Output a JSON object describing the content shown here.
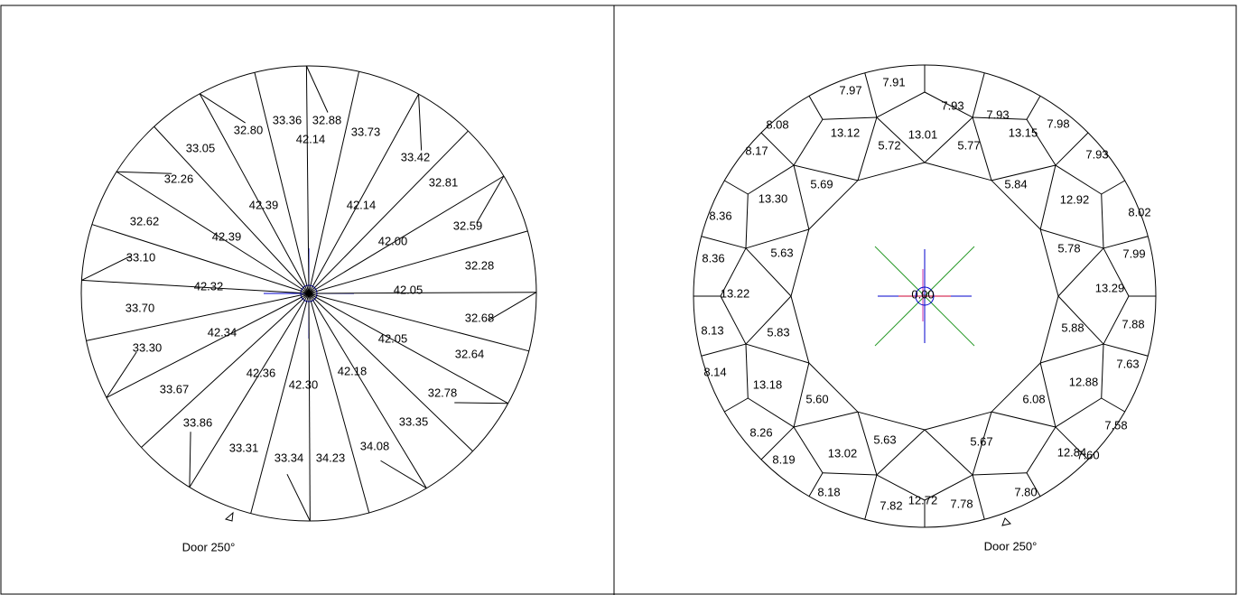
{
  "left": {
    "outer_labels": [
      "33.36",
      "32.88",
      "33.73",
      "33.42",
      "32.81",
      "32.59",
      "32.28",
      "32.68",
      "32.64",
      "32.78",
      "33.35",
      "34.08",
      "34.23",
      "33.34",
      "33.31",
      "33.86",
      "33.67",
      "33.30",
      "33.70",
      "33.10",
      "32.62",
      "32.26",
      "33.05",
      "32.80"
    ],
    "main_labels": [
      "42.14",
      "42.14",
      "42.00",
      "42.05",
      "42.05",
      "42.18",
      "42.30",
      "42.36",
      "42.34",
      "42.32",
      "42.39",
      "42.39"
    ],
    "door": "Door 250°"
  },
  "right": {
    "bezel_labels": [
      "13.01",
      "13.15",
      "12.92",
      "13.29",
      "12.88",
      "12.84",
      "12.72",
      "13.02",
      "13.18",
      "13.22",
      "13.30",
      "13.12"
    ],
    "star_labels": [
      "5.77",
      "5.84",
      "5.78",
      "5.88",
      "6.08",
      "5.67",
      "5.63",
      "5.60",
      "5.83",
      "5.63",
      "5.69",
      "5.72"
    ],
    "upper_half_labels": [
      "7.93",
      "7.93",
      "7.98",
      "7.93",
      "8.02",
      "7.99",
      "7.88",
      "7.63",
      "7.58",
      "7.60",
      "7.80",
      "7.78",
      "7.82",
      "8.18",
      "8.19",
      "8.26",
      "8.14",
      "8.13",
      "8.36",
      "8.36",
      "8.17",
      "8.08",
      "7.97",
      "7.91"
    ],
    "center_label": "0.00",
    "door": "Door 250°"
  }
}
